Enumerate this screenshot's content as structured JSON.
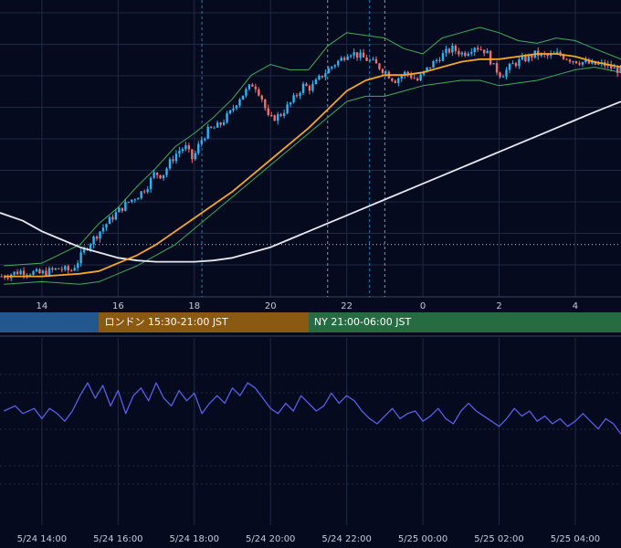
{
  "colors": {
    "background": "#050a1e",
    "grid": "#1f2a44",
    "candle_up": "#29b6f6",
    "candle_down": "#ef6f6c",
    "ma_fast": "#f5a623",
    "ma_slow": "#e8e8ef",
    "bollinger": "#3fae5a",
    "oscillator": "#5560e8",
    "session_tokyo": "#23588f",
    "session_london": "#8a5a12",
    "session_ny": "#276b43"
  },
  "sessions": [
    {
      "id": "tokyo",
      "label": ""
    },
    {
      "id": "london",
      "label": "ロンドン 15:30-21:00 JST"
    },
    {
      "id": "ny",
      "label": "NY 21:00-06:00 JST"
    }
  ],
  "chart_data": [
    {
      "type": "candlestick",
      "panel": "price",
      "x_ticks": [
        "14",
        "16",
        "18",
        "20",
        "22",
        "0",
        "2",
        "4"
      ],
      "x_range_hours": [
        12.9,
        29.2
      ],
      "y_range": [
        0,
        100
      ],
      "y_note": "price axis values not shown in screenshot; relative 0-100 scale",
      "close_path": [
        [
          13.0,
          6
        ],
        [
          13.5,
          8
        ],
        [
          14.0,
          7
        ],
        [
          14.5,
          9
        ],
        [
          14.8,
          8
        ],
        [
          15.0,
          12
        ],
        [
          15.2,
          17
        ],
        [
          15.5,
          22
        ],
        [
          15.8,
          27
        ],
        [
          16.0,
          30
        ],
        [
          16.3,
          34
        ],
        [
          16.6,
          37
        ],
        [
          16.8,
          40
        ],
        [
          17.0,
          45
        ],
        [
          17.2,
          44
        ],
        [
          17.4,
          49
        ],
        [
          17.6,
          53
        ],
        [
          17.8,
          55
        ],
        [
          18.0,
          50
        ],
        [
          18.2,
          57
        ],
        [
          18.4,
          61
        ],
        [
          18.7,
          63
        ],
        [
          19.0,
          68
        ],
        [
          19.2,
          73
        ],
        [
          19.4,
          76
        ],
        [
          19.6,
          79
        ],
        [
          19.8,
          74
        ],
        [
          20.0,
          65
        ],
        [
          20.3,
          67
        ],
        [
          20.6,
          72
        ],
        [
          20.9,
          78
        ],
        [
          21.1,
          77
        ],
        [
          21.4,
          82
        ],
        [
          21.7,
          86
        ],
        [
          21.9,
          88
        ],
        [
          22.1,
          91
        ],
        [
          22.4,
          89
        ],
        [
          22.7,
          87
        ],
        [
          23.0,
          84
        ],
        [
          23.3,
          80
        ],
        [
          23.6,
          83
        ],
        [
          23.9,
          80
        ],
        [
          24.2,
          85
        ],
        [
          24.5,
          89
        ],
        [
          24.8,
          92
        ],
        [
          25.1,
          90
        ],
        [
          25.4,
          93
        ],
        [
          25.7,
          91
        ],
        [
          25.9,
          85
        ],
        [
          26.1,
          82
        ],
        [
          26.4,
          86
        ],
        [
          26.7,
          88
        ],
        [
          27.0,
          90
        ],
        [
          27.3,
          89
        ],
        [
          27.6,
          90
        ],
        [
          27.9,
          88
        ],
        [
          28.2,
          87
        ],
        [
          28.5,
          86
        ],
        [
          28.8,
          86
        ],
        [
          29.1,
          84
        ]
      ],
      "ma_fast": [
        [
          13.0,
          6
        ],
        [
          14.0,
          6
        ],
        [
          15.0,
          7
        ],
        [
          15.5,
          8
        ],
        [
          16.0,
          11
        ],
        [
          16.5,
          14
        ],
        [
          17.0,
          18
        ],
        [
          17.5,
          23
        ],
        [
          18.0,
          28
        ],
        [
          18.5,
          33
        ],
        [
          19.0,
          38
        ],
        [
          19.5,
          44
        ],
        [
          20.0,
          50
        ],
        [
          20.5,
          56
        ],
        [
          21.0,
          62
        ],
        [
          21.5,
          69
        ],
        [
          22.0,
          76
        ],
        [
          22.5,
          80
        ],
        [
          23.0,
          82
        ],
        [
          23.5,
          82
        ],
        [
          24.0,
          83
        ],
        [
          24.5,
          85
        ],
        [
          25.0,
          87
        ],
        [
          25.5,
          88
        ],
        [
          26.0,
          88
        ],
        [
          26.5,
          89
        ],
        [
          27.0,
          90
        ],
        [
          27.5,
          90
        ],
        [
          28.0,
          89
        ],
        [
          28.5,
          87
        ],
        [
          29.2,
          85
        ]
      ],
      "ma_slow": [
        [
          12.9,
          30
        ],
        [
          13.5,
          27
        ],
        [
          14.0,
          23
        ],
        [
          14.5,
          20
        ],
        [
          15.0,
          17
        ],
        [
          15.5,
          15
        ],
        [
          16.0,
          13
        ],
        [
          16.5,
          12
        ],
        [
          17.0,
          11.5
        ],
        [
          17.5,
          11.5
        ],
        [
          18.0,
          11.5
        ],
        [
          18.5,
          12
        ],
        [
          19.0,
          13
        ],
        [
          19.5,
          15
        ],
        [
          20.0,
          17
        ],
        [
          20.5,
          20
        ],
        [
          21.0,
          23
        ],
        [
          21.5,
          26
        ],
        [
          22.0,
          29
        ],
        [
          22.5,
          32
        ],
        [
          23.0,
          35
        ],
        [
          23.5,
          38
        ],
        [
          24.0,
          41
        ],
        [
          24.5,
          44
        ],
        [
          25.0,
          47
        ],
        [
          25.5,
          50
        ],
        [
          26.0,
          53
        ],
        [
          26.5,
          56
        ],
        [
          27.0,
          59
        ],
        [
          27.5,
          62
        ],
        [
          28.0,
          65
        ],
        [
          28.5,
          68
        ],
        [
          29.2,
          72
        ]
      ],
      "bollinger_upper": [
        [
          13.0,
          10
        ],
        [
          14.0,
          11
        ],
        [
          15.0,
          18
        ],
        [
          15.5,
          26
        ],
        [
          16.0,
          32
        ],
        [
          16.5,
          40
        ],
        [
          17.0,
          47
        ],
        [
          17.5,
          55
        ],
        [
          18.0,
          60
        ],
        [
          18.5,
          66
        ],
        [
          19.0,
          73
        ],
        [
          19.5,
          82
        ],
        [
          20.0,
          86
        ],
        [
          20.5,
          84
        ],
        [
          21.0,
          84
        ],
        [
          21.5,
          93
        ],
        [
          22.0,
          98
        ],
        [
          22.5,
          97
        ],
        [
          23.0,
          96
        ],
        [
          23.5,
          92
        ],
        [
          24.0,
          90
        ],
        [
          24.5,
          96
        ],
        [
          25.0,
          98
        ],
        [
          25.5,
          100
        ],
        [
          26.0,
          98
        ],
        [
          26.5,
          95
        ],
        [
          27.0,
          94
        ],
        [
          27.5,
          96
        ],
        [
          28.0,
          95
        ],
        [
          28.5,
          92
        ],
        [
          29.2,
          88
        ]
      ],
      "bollinger_lower": [
        [
          13.0,
          3
        ],
        [
          14.0,
          4
        ],
        [
          15.0,
          3
        ],
        [
          15.5,
          4
        ],
        [
          16.0,
          7
        ],
        [
          16.5,
          10
        ],
        [
          17.0,
          14
        ],
        [
          17.5,
          18
        ],
        [
          18.0,
          24
        ],
        [
          18.5,
          30
        ],
        [
          19.0,
          36
        ],
        [
          19.5,
          42
        ],
        [
          20.0,
          48
        ],
        [
          20.5,
          54
        ],
        [
          21.0,
          60
        ],
        [
          21.5,
          66
        ],
        [
          22.0,
          72
        ],
        [
          22.5,
          74
        ],
        [
          23.0,
          74
        ],
        [
          23.5,
          76
        ],
        [
          24.0,
          78
        ],
        [
          24.5,
          79
        ],
        [
          25.0,
          80
        ],
        [
          25.5,
          80
        ],
        [
          26.0,
          78
        ],
        [
          26.5,
          79
        ],
        [
          27.0,
          80
        ],
        [
          27.5,
          82
        ],
        [
          28.0,
          84
        ],
        [
          28.5,
          85
        ],
        [
          29.2,
          83
        ]
      ],
      "reference_line_level": 18,
      "event_lines_hours": [
        18.2,
        21.5,
        22.6,
        23.0
      ]
    },
    {
      "type": "line",
      "panel": "oscillator",
      "x_ticks": [
        "5/24 14:00",
        "5/24 16:00",
        "5/24 18:00",
        "5/24 20:00",
        "5/24 22:00",
        "5/25 00:00",
        "5/25 02:00",
        "5/25 04:00"
      ],
      "y_range": [
        0,
        100
      ],
      "y_note": "oscillator axis values not shown in screenshot",
      "points": [
        [
          13.0,
          50
        ],
        [
          13.3,
          54
        ],
        [
          13.5,
          48
        ],
        [
          13.8,
          52
        ],
        [
          14.0,
          44
        ],
        [
          14.2,
          52
        ],
        [
          14.4,
          48
        ],
        [
          14.6,
          42
        ],
        [
          14.8,
          50
        ],
        [
          15.0,
          62
        ],
        [
          15.2,
          72
        ],
        [
          15.4,
          60
        ],
        [
          15.6,
          70
        ],
        [
          15.8,
          54
        ],
        [
          16.0,
          66
        ],
        [
          16.2,
          48
        ],
        [
          16.4,
          62
        ],
        [
          16.6,
          68
        ],
        [
          16.8,
          58
        ],
        [
          17.0,
          72
        ],
        [
          17.2,
          60
        ],
        [
          17.4,
          54
        ],
        [
          17.6,
          66
        ],
        [
          17.8,
          58
        ],
        [
          18.0,
          64
        ],
        [
          18.2,
          48
        ],
        [
          18.4,
          56
        ],
        [
          18.6,
          62
        ],
        [
          18.8,
          56
        ],
        [
          19.0,
          68
        ],
        [
          19.2,
          62
        ],
        [
          19.4,
          72
        ],
        [
          19.6,
          68
        ],
        [
          19.8,
          60
        ],
        [
          20.0,
          52
        ],
        [
          20.2,
          48
        ],
        [
          20.4,
          56
        ],
        [
          20.6,
          50
        ],
        [
          20.8,
          62
        ],
        [
          21.0,
          56
        ],
        [
          21.2,
          50
        ],
        [
          21.4,
          54
        ],
        [
          21.6,
          64
        ],
        [
          21.8,
          56
        ],
        [
          22.0,
          62
        ],
        [
          22.2,
          58
        ],
        [
          22.4,
          50
        ],
        [
          22.6,
          44
        ],
        [
          22.8,
          40
        ],
        [
          23.0,
          46
        ],
        [
          23.2,
          52
        ],
        [
          23.4,
          44
        ],
        [
          23.6,
          48
        ],
        [
          23.8,
          50
        ],
        [
          24.0,
          42
        ],
        [
          24.2,
          46
        ],
        [
          24.4,
          52
        ],
        [
          24.6,
          44
        ],
        [
          24.8,
          40
        ],
        [
          25.0,
          50
        ],
        [
          25.2,
          56
        ],
        [
          25.4,
          50
        ],
        [
          25.6,
          46
        ],
        [
          25.8,
          42
        ],
        [
          26.0,
          38
        ],
        [
          26.2,
          44
        ],
        [
          26.4,
          52
        ],
        [
          26.6,
          46
        ],
        [
          26.8,
          50
        ],
        [
          27.0,
          42
        ],
        [
          27.2,
          46
        ],
        [
          27.4,
          40
        ],
        [
          27.6,
          44
        ],
        [
          27.8,
          38
        ],
        [
          28.0,
          42
        ],
        [
          28.2,
          48
        ],
        [
          28.4,
          42
        ],
        [
          28.6,
          36
        ],
        [
          28.8,
          44
        ],
        [
          29.0,
          40
        ],
        [
          29.2,
          32
        ]
      ]
    }
  ]
}
